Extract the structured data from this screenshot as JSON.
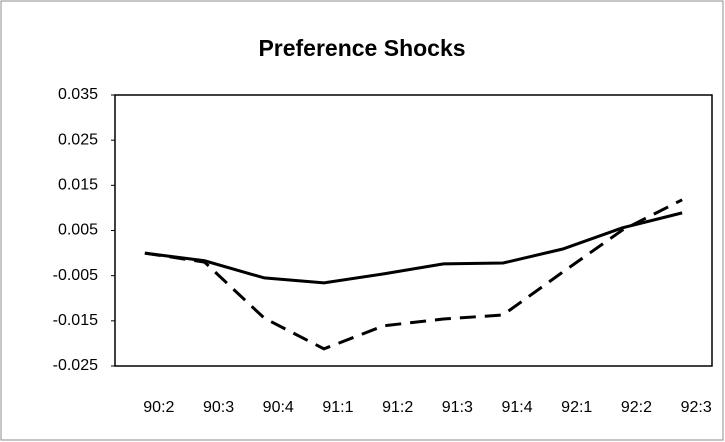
{
  "chart_data": {
    "type": "line",
    "title": "Preference Shocks",
    "categories": [
      "90:2",
      "90:3",
      "90:4",
      "91:1",
      "91:2",
      "91:3",
      "91:4",
      "92:1",
      "92:2",
      "92:3"
    ],
    "series": [
      {
        "color": "#000000",
        "dash": "solid",
        "values": [
          0.0,
          -0.0017,
          -0.0055,
          -0.0066,
          -0.0046,
          -0.0024,
          -0.0022,
          0.0009,
          0.0056,
          0.0089
        ]
      },
      {
        "color": "#000000",
        "dash": "dashed",
        "values": [
          0.0,
          -0.002,
          -0.0144,
          -0.0212,
          -0.0161,
          -0.0146,
          -0.0137,
          -0.0042,
          0.0051,
          0.0118
        ]
      }
    ],
    "ylim": [
      -0.025,
      0.035
    ],
    "yticks": [
      -0.025,
      -0.015,
      -0.005,
      0.005,
      0.015,
      0.025,
      0.035
    ],
    "grid": false
  }
}
